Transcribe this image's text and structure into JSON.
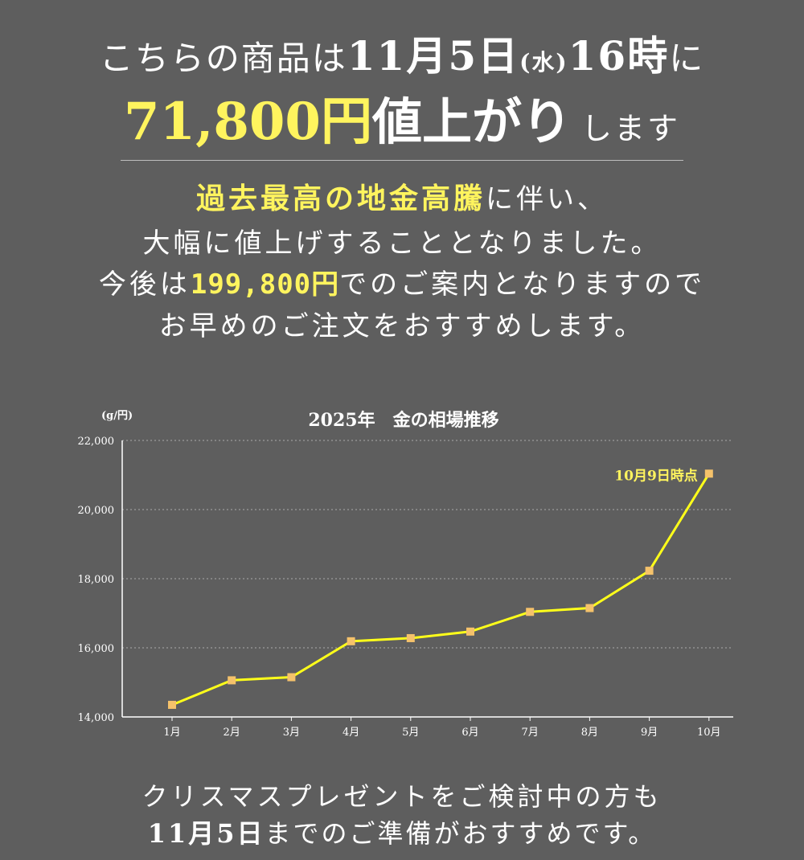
{
  "header": {
    "line1_pre": "こちらの商品は",
    "line1_date": "11月5日",
    "line1_weekday": "(水)",
    "line1_time": "16時",
    "line1_post": "に",
    "price_increase": "71,800円",
    "rise_text": "値上がり",
    "rise_suffix": "します"
  },
  "body": {
    "line1_highlight": "過去最高の地金高騰",
    "line1_rest": "に伴い、",
    "line2": "大幅に値上げすることとなりました。",
    "line3_pre": "今後は",
    "line3_price": "199,800円",
    "line3_post": "でのご案内となりますので",
    "line4": "お早めのご注文をおすすめします。"
  },
  "footer": {
    "line1": "クリスマスプレゼントをご検討中の方も",
    "line2_date": "11月5日",
    "line2_rest": "までのご準備がおすすめです。"
  },
  "colors": {
    "background": "#5e5e5e",
    "highlight": "#fff45e",
    "line": "#ffff1a",
    "marker": "#f5c26b",
    "grid": "#a9a9a9",
    "text": "#ffffff"
  },
  "chart_data": {
    "type": "line",
    "title": "2025年　金の相場推移",
    "ylabel": "(g/円)",
    "xlabel": "",
    "categories": [
      "1月",
      "2月",
      "3月",
      "4月",
      "5月",
      "6月",
      "7月",
      "8月",
      "9月",
      "10月"
    ],
    "values": [
      14350,
      15060,
      15150,
      16190,
      16280,
      16470,
      17040,
      17150,
      18230,
      21040
    ],
    "ylim": [
      14000,
      22000
    ],
    "yticks": [
      14000,
      16000,
      18000,
      20000,
      22000
    ],
    "ytick_labels": [
      "14,000",
      "16,000",
      "18,000",
      "20,000",
      "22,000"
    ],
    "grid": "horizontal dotted",
    "annotation": {
      "text": "10月9日時点",
      "category": "10月"
    }
  }
}
